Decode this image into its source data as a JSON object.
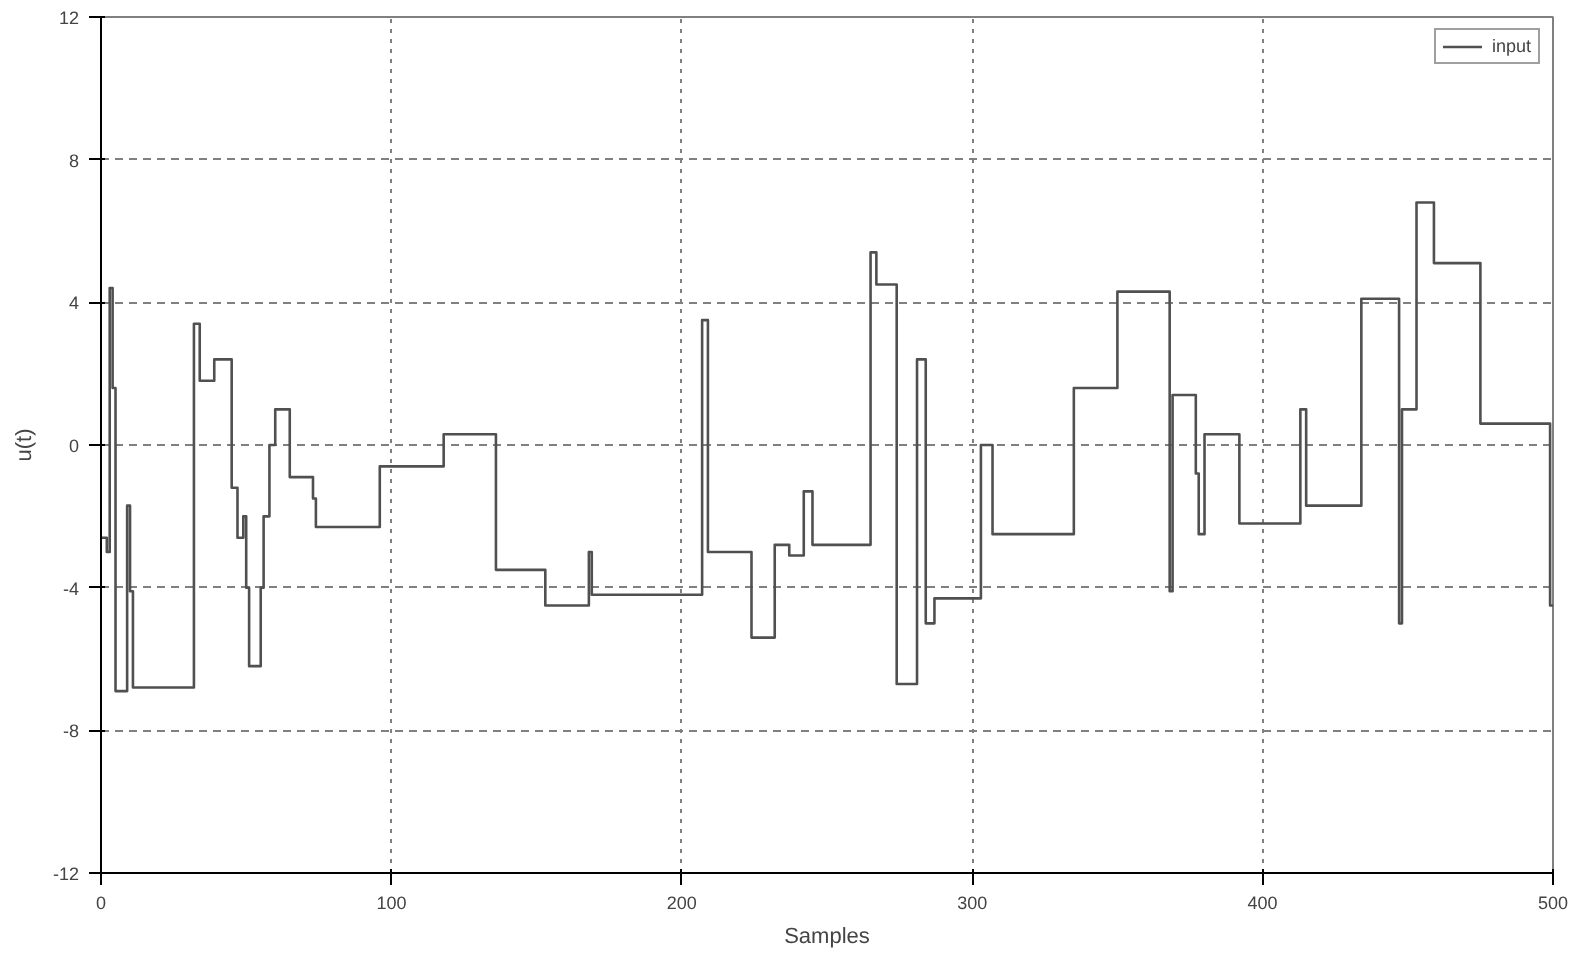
{
  "chart_data": {
    "type": "step",
    "xlabel": "Samples",
    "ylabel": "u(t)",
    "xlim": [
      0,
      500
    ],
    "ylim": [
      -12,
      12
    ],
    "xticks": [
      0,
      100,
      200,
      300,
      400,
      500
    ],
    "yticks": [
      -12,
      -8,
      -4,
      0,
      4,
      8,
      12
    ],
    "grid": true,
    "legend": "top right",
    "line_style": "solid",
    "series": [
      {
        "name": "input",
        "color": "#505050",
        "x": [
          0,
          2,
          3,
          4,
          5,
          9,
          10,
          11,
          32,
          34,
          39,
          45,
          47,
          49,
          50,
          51,
          55,
          56,
          58,
          60,
          65,
          73,
          74,
          96,
          118,
          136,
          153,
          168,
          169,
          207,
          209,
          224,
          232,
          237,
          242,
          245,
          265,
          267,
          274,
          281,
          284,
          287,
          303,
          307,
          335,
          350,
          368,
          369,
          377,
          378,
          380,
          392,
          413,
          415,
          434,
          447,
          448,
          453,
          459,
          475,
          499,
          500
        ],
        "values": [
          -2.6,
          -3.0,
          4.4,
          1.6,
          -6.9,
          -1.7,
          -4.1,
          -6.8,
          3.4,
          1.8,
          2.4,
          -1.2,
          -2.6,
          -2.0,
          -4.0,
          -6.2,
          -4.0,
          -2.0,
          0.0,
          1.0,
          -0.9,
          -1.5,
          -2.3,
          -0.6,
          0.3,
          -3.5,
          -4.5,
          -3.0,
          -4.2,
          3.5,
          -3.0,
          -5.4,
          -2.8,
          -3.1,
          -1.3,
          -2.8,
          5.4,
          4.5,
          -6.7,
          2.4,
          -5.0,
          -4.3,
          0.0,
          -2.5,
          1.6,
          4.3,
          -4.1,
          1.4,
          -0.8,
          -2.5,
          0.3,
          -2.2,
          1.0,
          -1.7,
          4.1,
          -5.0,
          1.0,
          6.8,
          5.1,
          0.6,
          -4.5,
          -4.5
        ]
      }
    ]
  }
}
